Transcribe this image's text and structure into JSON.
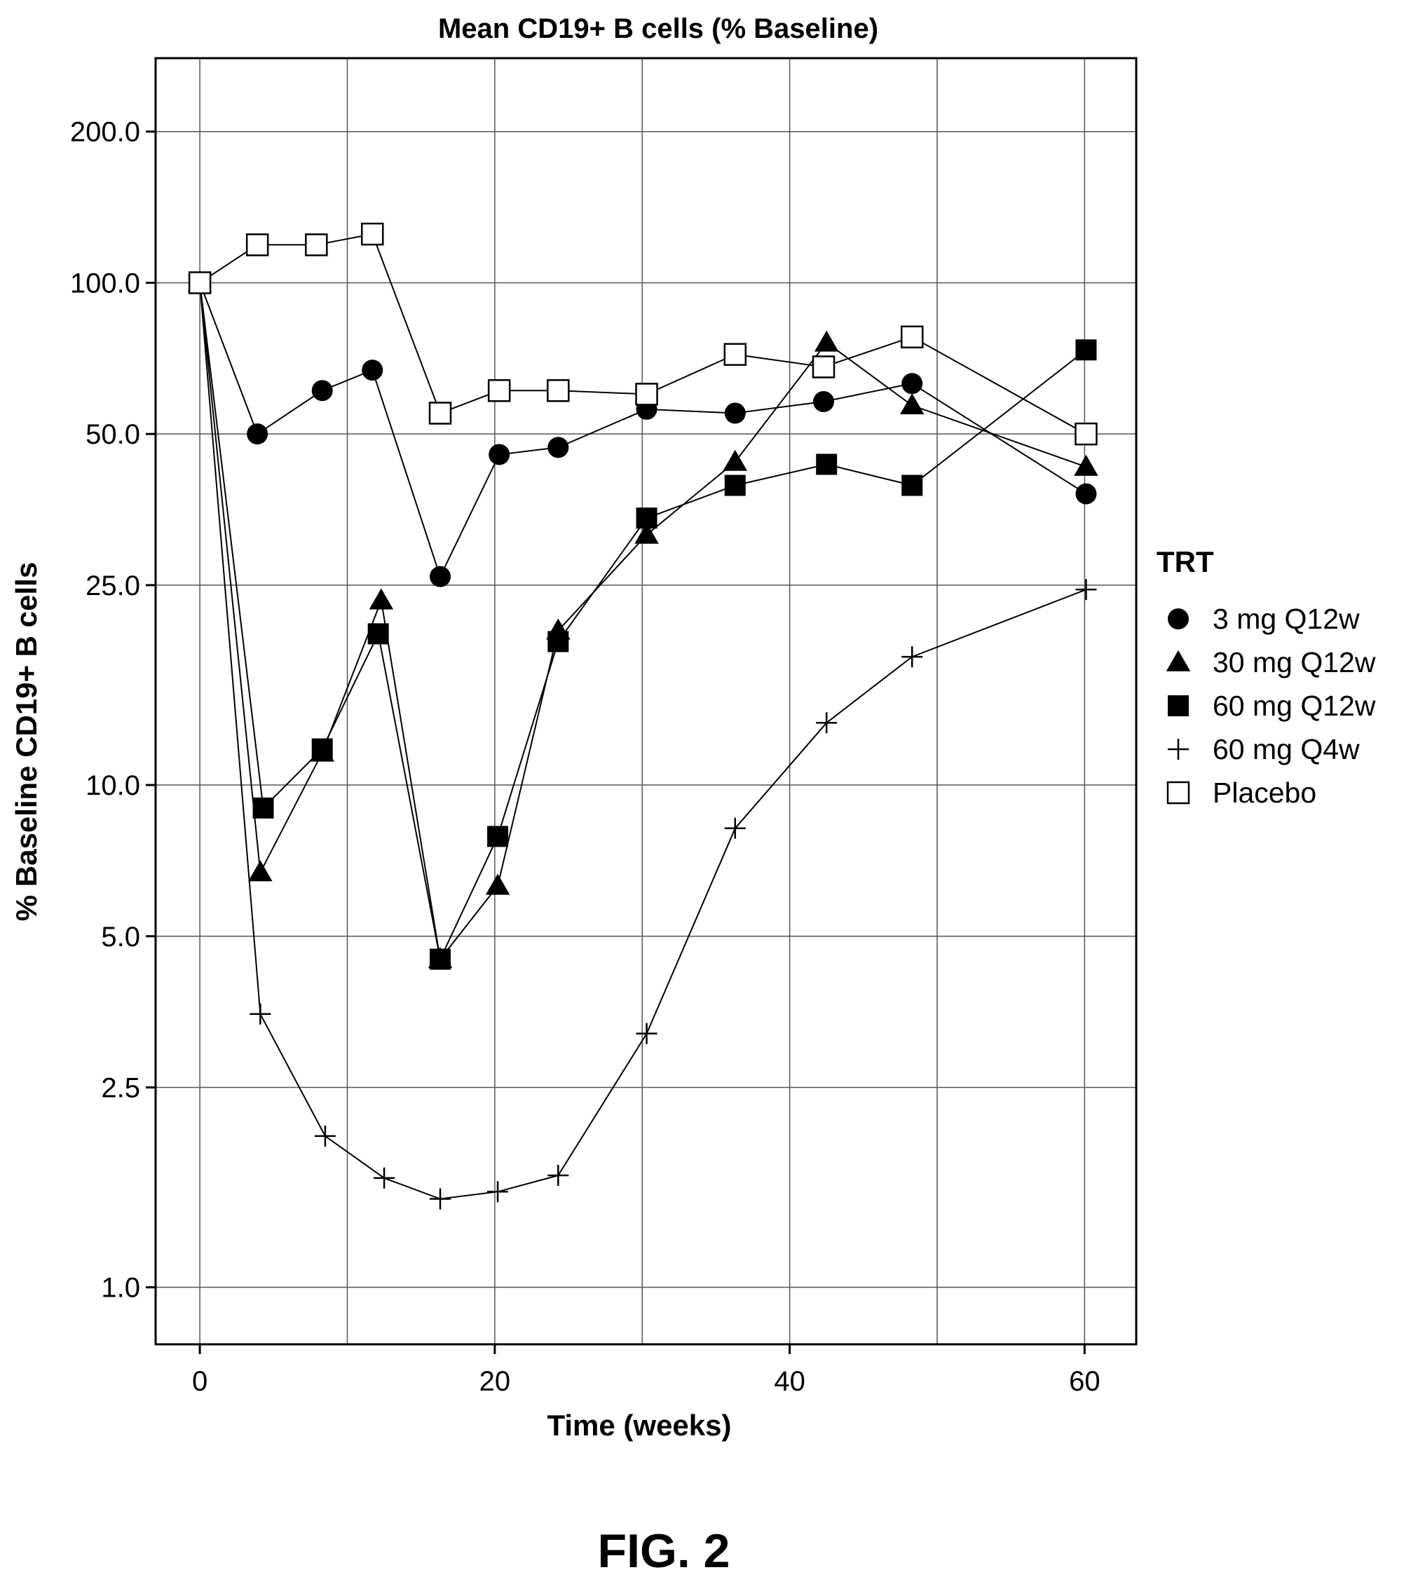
{
  "chart_data": {
    "type": "line",
    "title": "Mean CD19+ B cells (% Baseline)",
    "xlabel": "Time (weeks)",
    "ylabel": "% Baseline CD19+ B cells",
    "yscale": "log",
    "xlim": [
      -3,
      63.5
    ],
    "ylim": [
      0.77,
      280
    ],
    "x_ticks": [
      0,
      20,
      40,
      60
    ],
    "x_tick_labels": [
      "0",
      "20",
      "40",
      "60"
    ],
    "y_ticks": [
      1.0,
      2.5,
      5.0,
      10.0,
      25.0,
      50.0,
      100.0,
      200.0
    ],
    "y_tick_labels": [
      "1.0",
      "2.5",
      "5.0",
      "10.0",
      "25.0",
      "50.0",
      "100.0",
      "200.0"
    ],
    "grid": true,
    "legend_title": "TRT",
    "legend_position": "right",
    "series": [
      {
        "name": "3 mg Q12w",
        "marker": "circle-filled",
        "x": [
          0,
          3.9,
          8.3,
          11.7,
          16.3,
          20.3,
          24.3,
          30.3,
          36.3,
          42.3,
          48.3,
          60.1
        ],
        "y": [
          100,
          50,
          61,
          67,
          26,
          45.5,
          47,
          56,
          55,
          58,
          63,
          38
        ]
      },
      {
        "name": "30 mg Q12w",
        "marker": "triangle-filled",
        "x": [
          0,
          4.1,
          8.3,
          12.3,
          16.3,
          20.2,
          24.3,
          30.3,
          36.3,
          42.5,
          48.3,
          60.1
        ],
        "y": [
          100,
          6.7,
          11.6,
          23.3,
          4.5,
          6.3,
          20.3,
          31.5,
          44,
          76,
          57,
          43
        ]
      },
      {
        "name": "60 mg Q12w",
        "marker": "square-filled",
        "x": [
          0,
          4.3,
          8.3,
          12.1,
          16.3,
          20.2,
          24.3,
          30.3,
          36.3,
          42.5,
          48.3,
          60.1
        ],
        "y": [
          100,
          9.0,
          11.8,
          20.0,
          4.5,
          7.9,
          19.3,
          34.0,
          39.5,
          43.5,
          39.5,
          73.5
        ]
      },
      {
        "name": "60 mg Q4w",
        "marker": "plus",
        "x": [
          0,
          4.1,
          8.5,
          12.5,
          16.3,
          20.2,
          24.3,
          30.3,
          36.3,
          42.5,
          48.3,
          60.1
        ],
        "y": [
          100,
          3.5,
          2.0,
          1.65,
          1.5,
          1.55,
          1.67,
          3.2,
          8.2,
          13.3,
          18.0,
          24.5
        ]
      },
      {
        "name": "Placebo",
        "marker": "square-open",
        "x": [
          0,
          3.9,
          7.9,
          11.7,
          16.3,
          20.3,
          24.3,
          30.3,
          36.3,
          42.3,
          48.3,
          60.1
        ],
        "y": [
          100,
          119,
          119,
          125,
          55,
          61,
          61,
          60,
          72,
          68,
          78,
          50
        ]
      }
    ]
  },
  "figure_label": "FIG. 2"
}
